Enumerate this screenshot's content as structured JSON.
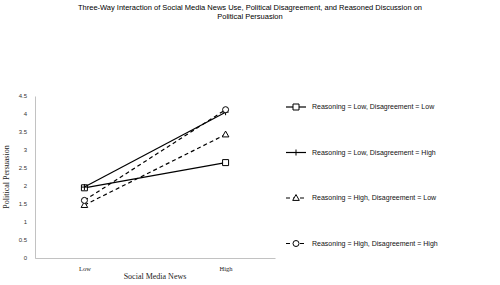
{
  "chart_data": {
    "type": "line",
    "title": "Three-Way Interaction of Social Media News Use, Political Disagreement, and Reasoned Discussion on Political Persuasion",
    "x_label": "Social Media News",
    "y_label": "Political Persuasion",
    "categories": [
      "Low",
      "High"
    ],
    "series": [
      {
        "name": "Reasoning = Low, Disagreement = Low",
        "color": "#000000",
        "marker": "square",
        "line_style": "solid",
        "values": [
          1.95,
          2.65
        ]
      },
      {
        "name": "Reasoning = Low, Disagreement = High",
        "color": "#000000",
        "marker": "plus",
        "line_style": "solid",
        "values": [
          1.97,
          4.05
        ]
      },
      {
        "name": "Reasoning = High, Disagreement = Low",
        "color": "#000000",
        "marker": "triangle",
        "line_style": "dashed",
        "values": [
          1.47,
          3.43
        ]
      },
      {
        "name": "Reasoning = High, Disagreement = High",
        "color": "#000000",
        "marker": "circle",
        "line_style": "dashed",
        "values": [
          1.6,
          4.12
        ]
      }
    ],
    "ylim": [
      0,
      4.5
    ],
    "yticks": [
      0,
      0.5,
      1,
      1.5,
      2,
      2.5,
      3,
      3.5,
      4,
      4.5
    ],
    "grid": false,
    "legend": "right"
  }
}
